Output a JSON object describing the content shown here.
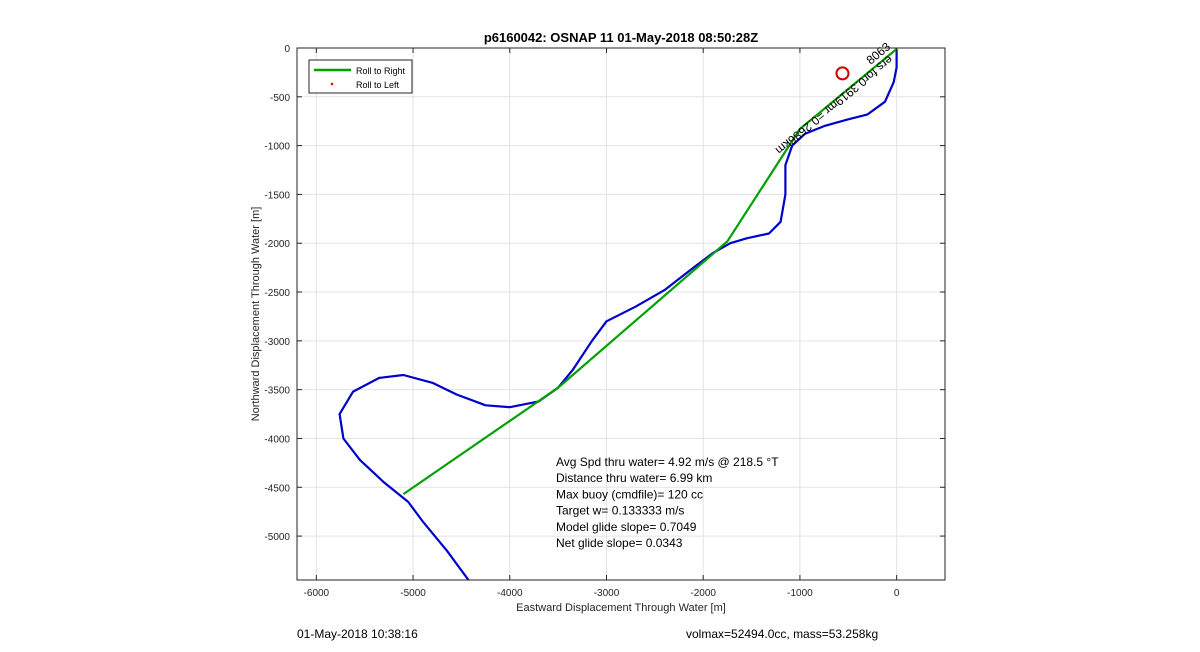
{
  "chart_data": {
    "type": "line",
    "title": "p6160042: OSNAP 11 01-May-2018 08:50:28Z",
    "xlabel": "Eastward Displacement Through Water [m]",
    "ylabel": "Northward Displacement Through Water [m]",
    "xlim": [
      -6200,
      500
    ],
    "ylim": [
      -5450,
      0
    ],
    "x_ticks": [
      -6000,
      -5000,
      -4000,
      -3000,
      -2000,
      -1000,
      0
    ],
    "y_ticks": [
      0,
      -500,
      -1000,
      -1500,
      -2000,
      -2500,
      -3000,
      -3500,
      -4000,
      -4500,
      -5000
    ],
    "grid": true,
    "legend": {
      "position": "top-left",
      "entries": [
        {
          "label": "Roll to Right",
          "color": "#00a000",
          "marker": "line"
        },
        {
          "label": "Roll to Left",
          "color": "#ff0000",
          "marker": "dot"
        }
      ]
    },
    "series": [
      {
        "color": "#0000cc",
        "points": [
          [
            0,
            -10
          ],
          [
            0,
            -200
          ],
          [
            -30,
            -350
          ],
          [
            -120,
            -550
          ],
          [
            -300,
            -680
          ],
          [
            -500,
            -730
          ],
          [
            -750,
            -800
          ],
          [
            -950,
            -880
          ],
          [
            -1080,
            -1000
          ],
          [
            -1150,
            -1200
          ],
          [
            -1150,
            -1500
          ],
          [
            -1200,
            -1780
          ],
          [
            -1320,
            -1900
          ],
          [
            -1550,
            -1950
          ],
          [
            -1720,
            -2000
          ],
          [
            -1900,
            -2100
          ],
          [
            -2100,
            -2250
          ],
          [
            -2400,
            -2480
          ],
          [
            -2700,
            -2650
          ],
          [
            -3000,
            -2800
          ],
          [
            -3150,
            -3000
          ],
          [
            -3350,
            -3300
          ],
          [
            -3500,
            -3480
          ],
          [
            -3700,
            -3620
          ],
          [
            -4000,
            -3680
          ],
          [
            -4250,
            -3660
          ],
          [
            -4550,
            -3550
          ],
          [
            -4800,
            -3430
          ],
          [
            -5100,
            -3350
          ],
          [
            -5350,
            -3380
          ],
          [
            -5620,
            -3520
          ],
          [
            -5760,
            -3750
          ],
          [
            -5720,
            -4000
          ],
          [
            -5550,
            -4220
          ],
          [
            -5300,
            -4450
          ],
          [
            -5050,
            -4650
          ],
          [
            -4900,
            -4850
          ],
          [
            -4650,
            -5150
          ],
          [
            -4420,
            -5460
          ]
        ]
      },
      {
        "color": "#00a000",
        "points": [
          [
            0,
            -10
          ],
          [
            -1000,
            -830
          ],
          [
            -1750,
            -1980
          ],
          [
            -3500,
            -3480
          ],
          [
            -5100,
            -4570
          ]
        ]
      }
    ],
    "markers": [
      {
        "x": -560,
        "y": -260,
        "color": "#cc0000",
        "shape": "circle"
      }
    ],
    "annotations": {
      "rotated_label": "ers for0.3919mr =0.2686km",
      "apex_label": "​8063"
    },
    "stats": [
      "Avg Spd thru water=  4.92 m/s @ 218.5 °T",
      "Distance thru water=  6.99 km",
      "Max buoy (cmdfile)= 120 cc",
      "Target w= 0.133333 m/s",
      "Model glide slope= 0.7049",
      "Net glide slope= 0.0343"
    ]
  },
  "footer": {
    "left": "01-May-2018 10:38:16",
    "right": "volmax=52494.0cc, mass=53.258kg"
  }
}
